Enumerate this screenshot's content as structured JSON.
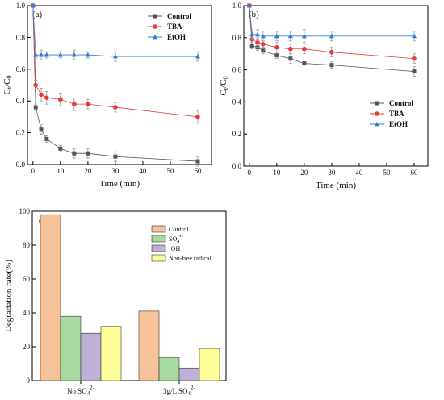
{
  "chart_data": [
    {
      "type": "line",
      "panel_label": "(a)",
      "xlabel": "Time (min)",
      "ylabel_main": "C",
      "ylabel_sub1": "t",
      "ylabel_mid": "/C",
      "ylabel_sub2": "0",
      "xlim": [
        -2,
        65
      ],
      "ylim": [
        0,
        1.0
      ],
      "xticks": [
        0,
        10,
        20,
        30,
        40,
        50,
        60
      ],
      "yticks": [
        0.0,
        0.2,
        0.4,
        0.6,
        0.8,
        1.0
      ],
      "tick_labels_x": [
        "0",
        "10",
        "20",
        "30",
        "40",
        "50",
        "60"
      ],
      "tick_labels_y": [
        "0.0",
        "0.2",
        "0.4",
        "0.6",
        "0.8",
        "1.0"
      ],
      "legend_position": "top-right",
      "series": [
        {
          "name": "Control",
          "color": "#555555",
          "marker": "square",
          "x": [
            0,
            1,
            3,
            5,
            10,
            15,
            20,
            30,
            60
          ],
          "y": [
            1.0,
            0.36,
            0.22,
            0.16,
            0.1,
            0.07,
            0.07,
            0.05,
            0.02
          ],
          "err": [
            0,
            0.02,
            0.03,
            0.02,
            0.02,
            0.03,
            0.03,
            0.03,
            0.03
          ]
        },
        {
          "name": "TBA",
          "color": "#e8393a",
          "marker": "circle",
          "x": [
            0,
            1,
            3,
            5,
            10,
            15,
            20,
            30,
            60
          ],
          "y": [
            1.0,
            0.5,
            0.44,
            0.42,
            0.41,
            0.38,
            0.38,
            0.36,
            0.3
          ],
          "err": [
            0,
            0.03,
            0.04,
            0.04,
            0.04,
            0.04,
            0.03,
            0.03,
            0.04
          ]
        },
        {
          "name": "EtOH",
          "color": "#2f7fd8",
          "marker": "triangle",
          "x": [
            0,
            1,
            3,
            5,
            10,
            15,
            20,
            30,
            60
          ],
          "y": [
            1.0,
            0.69,
            0.69,
            0.69,
            0.69,
            0.69,
            0.69,
            0.68,
            0.68
          ],
          "err": [
            0,
            0.02,
            0.03,
            0.02,
            0.02,
            0.03,
            0.02,
            0.03,
            0.03
          ]
        }
      ]
    },
    {
      "type": "line",
      "panel_label": "(b)",
      "xlabel": "Time (min)",
      "ylabel_main": "C",
      "ylabel_sub1": "t",
      "ylabel_mid": "/C",
      "ylabel_sub2": "0",
      "xlim": [
        -2,
        65
      ],
      "ylim": [
        0,
        1.0
      ],
      "xticks": [
        0,
        10,
        20,
        30,
        40,
        50,
        60
      ],
      "yticks": [
        0.0,
        0.2,
        0.4,
        0.6,
        0.8,
        1.0
      ],
      "tick_labels_x": [
        "0",
        "10",
        "20",
        "30",
        "40",
        "50",
        "60"
      ],
      "tick_labels_y": [
        "0.0",
        "0.2",
        "0.4",
        "0.6",
        "0.8",
        "1.0"
      ],
      "legend_position": "center-right",
      "series": [
        {
          "name": "Control",
          "color": "#555555",
          "marker": "square",
          "x": [
            0,
            1,
            3,
            5,
            10,
            15,
            20,
            30,
            60
          ],
          "y": [
            1.0,
            0.75,
            0.74,
            0.72,
            0.69,
            0.67,
            0.64,
            0.63,
            0.59
          ],
          "err": [
            0,
            0.02,
            0.02,
            0.02,
            0.02,
            0.03,
            0.01,
            0.02,
            0.03
          ]
        },
        {
          "name": "TBA",
          "color": "#e8393a",
          "marker": "circle",
          "x": [
            0,
            1,
            3,
            5,
            10,
            15,
            20,
            30,
            60
          ],
          "y": [
            1.0,
            0.79,
            0.77,
            0.76,
            0.74,
            0.73,
            0.73,
            0.71,
            0.67
          ],
          "err": [
            0,
            0.02,
            0.03,
            0.02,
            0.03,
            0.03,
            0.03,
            0.03,
            0.03
          ]
        },
        {
          "name": "EtOH",
          "color": "#2f7fd8",
          "marker": "triangle",
          "x": [
            0,
            1,
            3,
            5,
            10,
            15,
            20,
            30,
            60
          ],
          "y": [
            1.0,
            0.82,
            0.82,
            0.81,
            0.81,
            0.81,
            0.81,
            0.81,
            0.81
          ],
          "err": [
            0,
            0.03,
            0.03,
            0.03,
            0.03,
            0.03,
            0.04,
            0.03,
            0.03
          ]
        }
      ]
    },
    {
      "type": "bar",
      "panel_label": "(c)",
      "ylabel": "Degradation rate(%)",
      "ylim": [
        0,
        100
      ],
      "yticks": [
        0,
        20,
        40,
        60,
        80,
        100
      ],
      "tick_labels_y": [
        "0",
        "20",
        "40",
        "60",
        "80",
        "100"
      ],
      "categories": [
        {
          "main": "No SO",
          "sub": "4",
          "sup": "2-"
        },
        {
          "main": "3g/L SO",
          "sub": "4",
          "sup": "2-"
        }
      ],
      "legend_position": "top-right",
      "series": [
        {
          "name": "Control",
          "sub": "",
          "sup": "",
          "color": "#f9c39a",
          "values": [
            98,
            41
          ]
        },
        {
          "name": "SO",
          "sub": "4",
          "sup": "•−",
          "color": "#a6dba0",
          "values": [
            38,
            13.5
          ]
        },
        {
          "name": "·OH",
          "sub": "",
          "sup": "",
          "color": "#bfb0d8",
          "values": [
            28,
            7.5
          ]
        },
        {
          "name": "Non-free radical",
          "sub": "",
          "sup": "",
          "color": "#ffff99",
          "values": [
            32,
            19
          ]
        }
      ]
    }
  ]
}
